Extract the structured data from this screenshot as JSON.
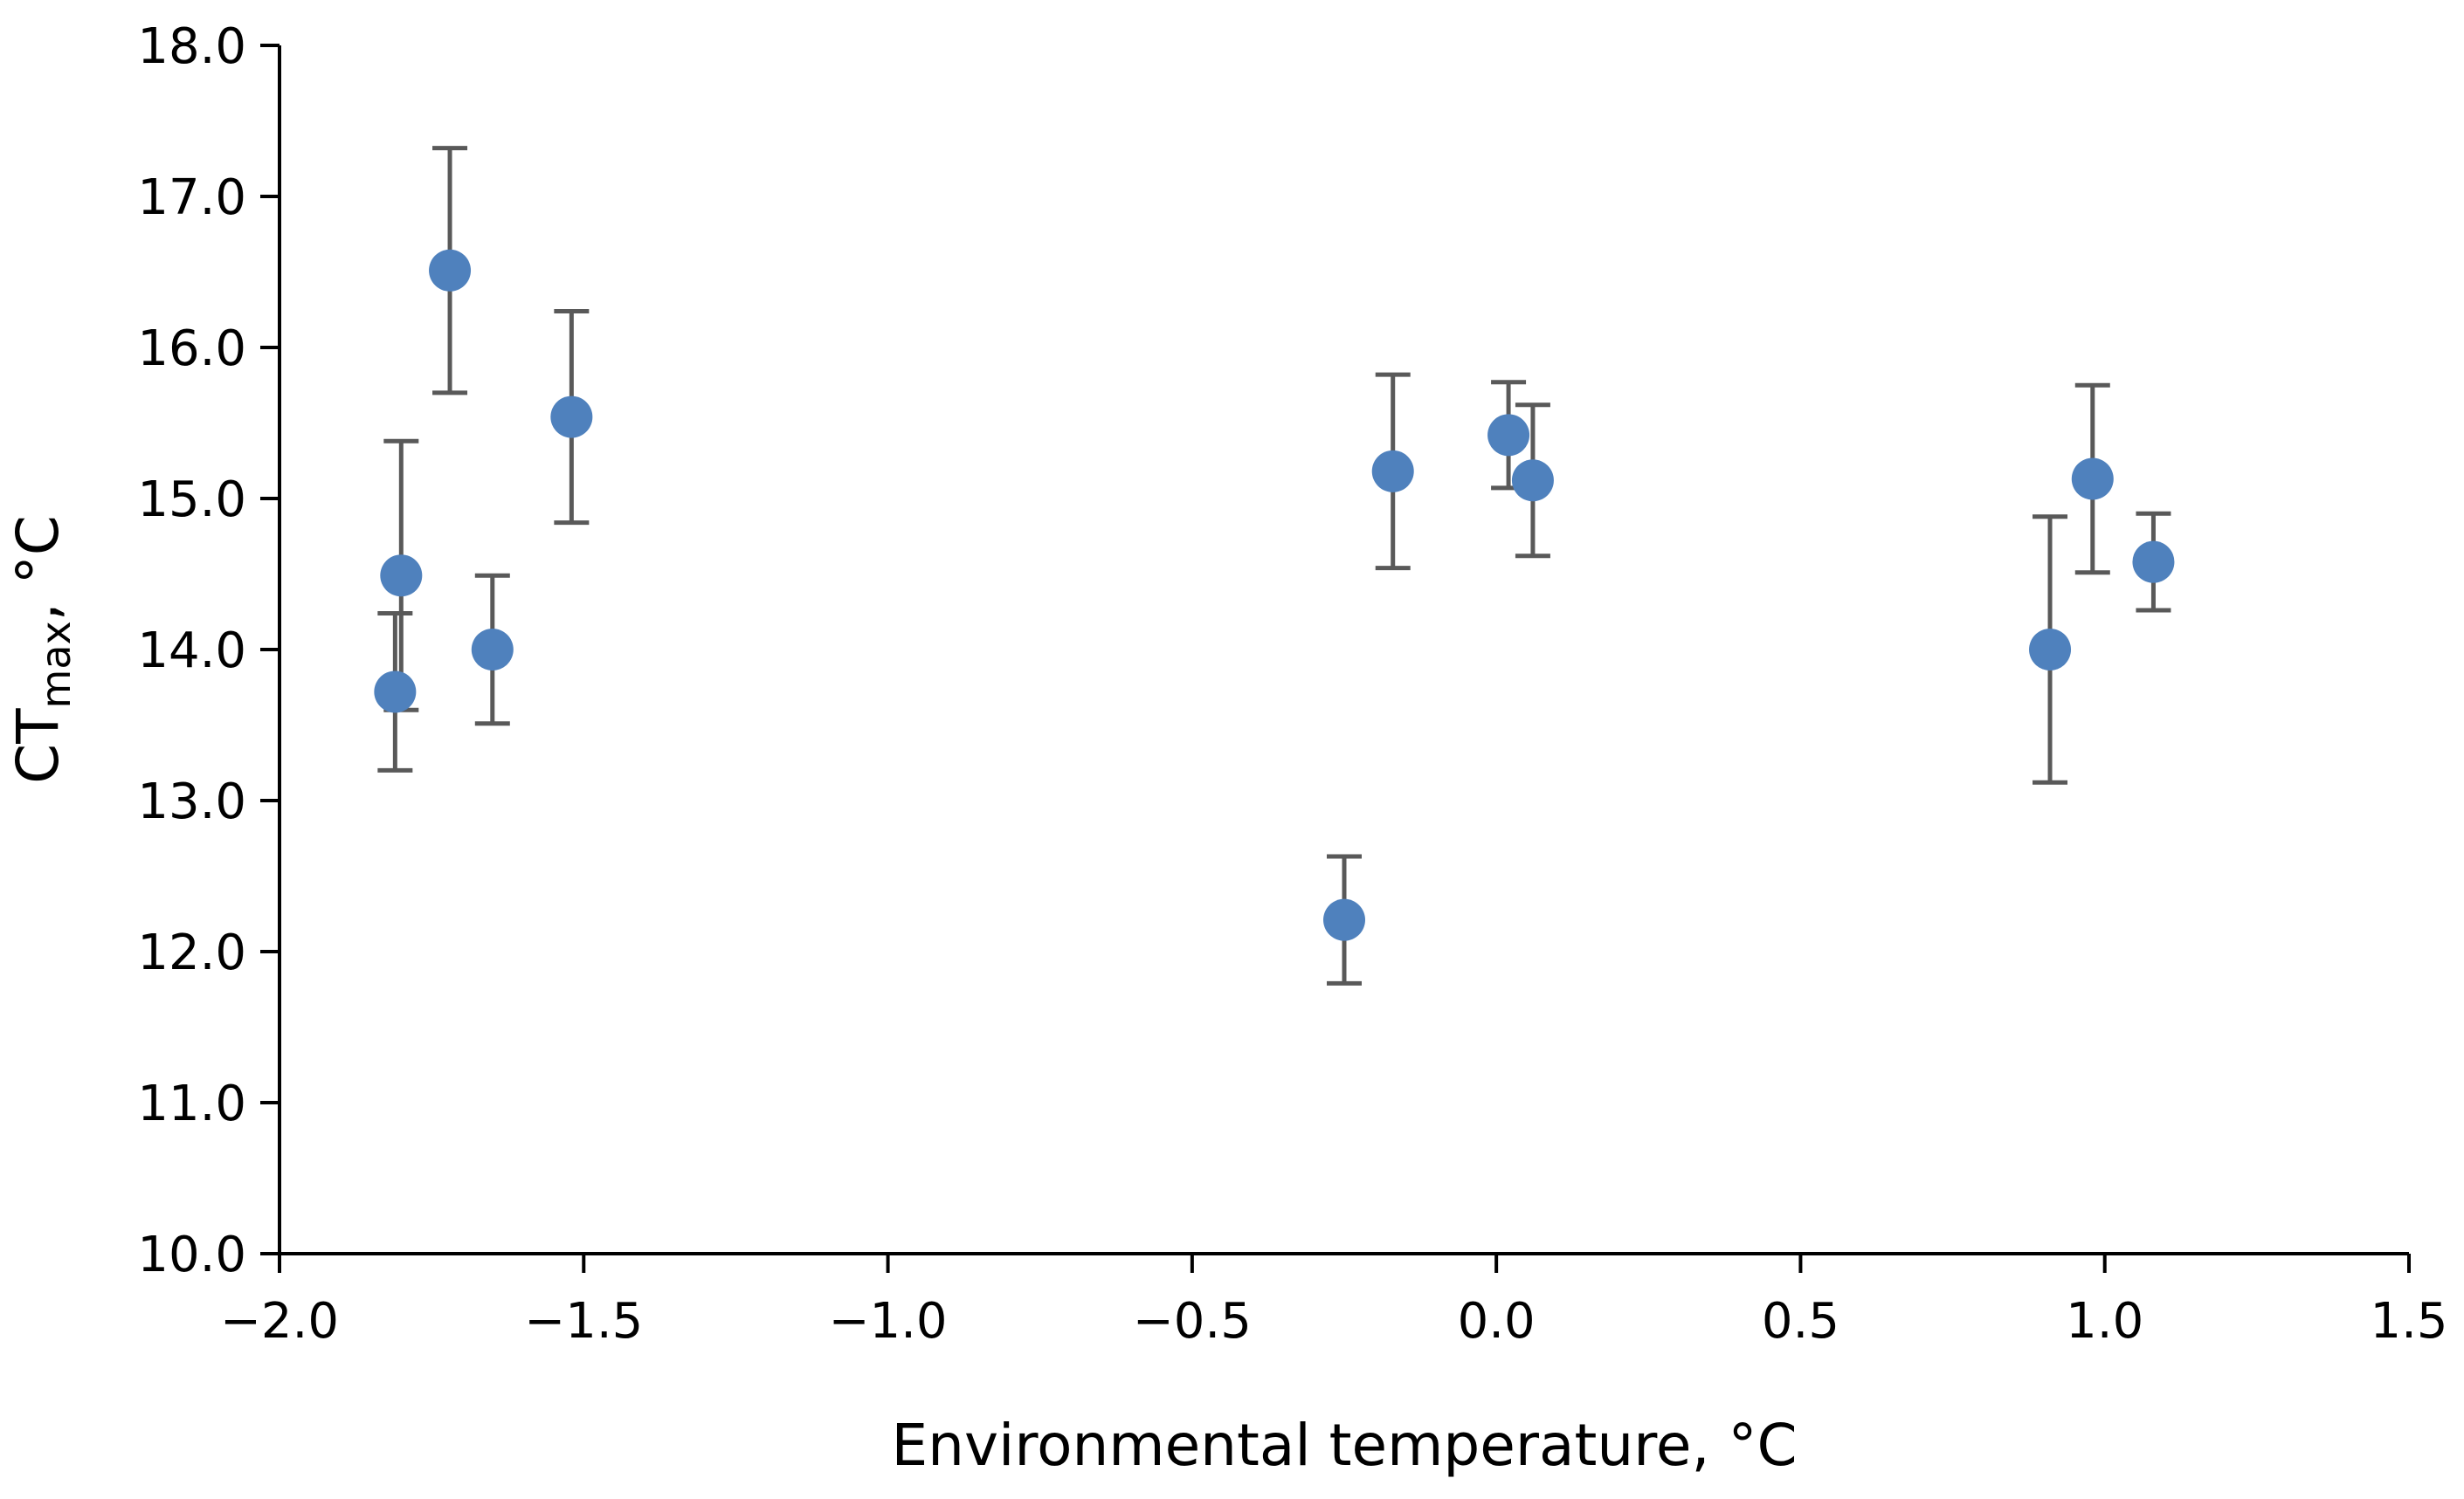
{
  "chart_data": {
    "type": "scatter",
    "title": "",
    "xlabel": "Environmental temperature, °C",
    "ylabel": {
      "main": "CT",
      "subscript": "max",
      "suffix": ", °C"
    },
    "xlim": [
      -2.0,
      1.5
    ],
    "ylim": [
      10.0,
      18.0
    ],
    "x_ticks": [
      -2.0,
      -1.5,
      -1.0,
      -0.5,
      0.0,
      0.5,
      1.0,
      1.5
    ],
    "x_tick_labels": [
      "−2.0",
      "−1.5",
      "−1.0",
      "−0.5",
      "0.0",
      "0.5",
      "1.0",
      "1.5"
    ],
    "y_ticks": [
      10.0,
      11.0,
      12.0,
      13.0,
      14.0,
      15.0,
      16.0,
      17.0,
      18.0
    ],
    "y_tick_labels": [
      "10.0",
      "11.0",
      "12.0",
      "13.0",
      "14.0",
      "15.0",
      "16.0",
      "17.0",
      "18.0"
    ],
    "grid": false,
    "legend": "none",
    "colors": {
      "marker": "#4f81bd",
      "error_bar": "#595959",
      "axis": "#000000"
    },
    "series": [
      {
        "name": "CTmax",
        "points": [
          {
            "x": -1.81,
            "y": 13.72,
            "err_low": 0.52,
            "err_high": 0.52
          },
          {
            "x": -1.8,
            "y": 14.49,
            "err_low": 0.89,
            "err_high": 0.89
          },
          {
            "x": -1.72,
            "y": 16.51,
            "err_low": 0.81,
            "err_high": 0.81
          },
          {
            "x": -1.65,
            "y": 14.0,
            "err_low": 0.49,
            "err_high": 0.49
          },
          {
            "x": -1.52,
            "y": 15.54,
            "err_low": 0.7,
            "err_high": 0.7
          },
          {
            "x": -0.25,
            "y": 12.21,
            "err_low": 0.42,
            "err_high": 0.42
          },
          {
            "x": -0.17,
            "y": 15.18,
            "err_low": 0.64,
            "err_high": 0.64
          },
          {
            "x": 0.02,
            "y": 15.42,
            "err_low": 0.35,
            "err_high": 0.35
          },
          {
            "x": 0.06,
            "y": 15.12,
            "err_low": 0.5,
            "err_high": 0.5
          },
          {
            "x": 0.91,
            "y": 14.0,
            "err_low": 0.88,
            "err_high": 0.88
          },
          {
            "x": 0.98,
            "y": 15.13,
            "err_low": 0.62,
            "err_high": 0.62
          },
          {
            "x": 1.08,
            "y": 14.58,
            "err_low": 0.32,
            "err_high": 0.32
          }
        ]
      }
    ]
  }
}
